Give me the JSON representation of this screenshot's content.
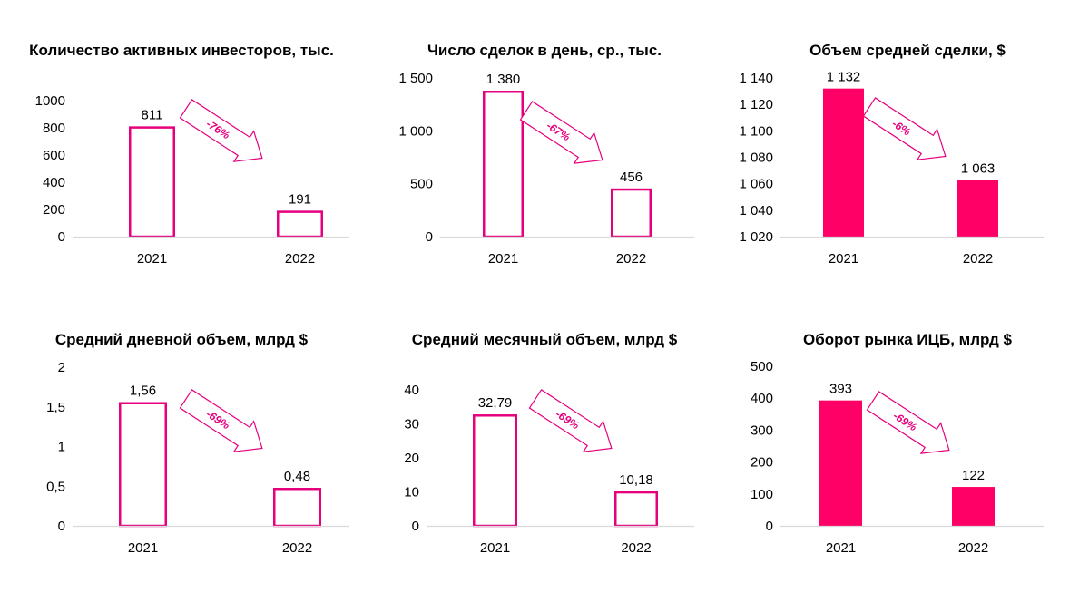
{
  "colors": {
    "accent": "#e6007e",
    "filled": "#ff0066",
    "axis": "#d9d9d9"
  },
  "chart_data": [
    {
      "type": "bar",
      "title": "Количество активных инвесторов, тыс.",
      "categories": [
        "2021",
        "2022"
      ],
      "values": [
        811,
        191
      ],
      "value_labels": [
        "811",
        "191"
      ],
      "ylim": [
        0,
        1000
      ],
      "yticks": [
        0,
        200,
        400,
        600,
        800,
        1000
      ],
      "ytick_labels": [
        "0",
        "200",
        "400",
        "600",
        "800",
        "1000"
      ],
      "bar_style": "outline",
      "change_label": "-76%"
    },
    {
      "type": "bar",
      "title": "Число сделок в день, ср., тыс.",
      "categories": [
        "2021",
        "2022"
      ],
      "values": [
        1380,
        456
      ],
      "value_labels": [
        "1 380",
        "456"
      ],
      "ylim": [
        0,
        1500
      ],
      "yticks": [
        0,
        500,
        1000,
        1500
      ],
      "ytick_labels": [
        "0",
        "500",
        "1 000",
        "1 500"
      ],
      "bar_style": "outline",
      "change_label": "-67%"
    },
    {
      "type": "bar",
      "title": "Объем средней сделки, $",
      "categories": [
        "2021",
        "2022"
      ],
      "values": [
        1132,
        1063
      ],
      "value_labels": [
        "1 132",
        "1 063"
      ],
      "ylim": [
        1020,
        1140
      ],
      "yticks": [
        1020,
        1040,
        1060,
        1080,
        1100,
        1120,
        1140
      ],
      "ytick_labels": [
        "1 020",
        "1 040",
        "1 060",
        "1 080",
        "1 100",
        "1 120",
        "1 140"
      ],
      "bar_style": "filled",
      "change_label": "-6%"
    },
    {
      "type": "bar",
      "title": "Средний дневной объем, млрд $",
      "categories": [
        "2021",
        "2022"
      ],
      "values": [
        1.56,
        0.48
      ],
      "value_labels": [
        "1,56",
        "0,48"
      ],
      "ylim": [
        0,
        2
      ],
      "yticks": [
        0,
        0.5,
        1,
        1.5,
        2
      ],
      "ytick_labels": [
        "0",
        "0,5",
        "1",
        "1,5",
        "2"
      ],
      "bar_style": "outline",
      "change_label": "-69%"
    },
    {
      "type": "bar",
      "title": "Средний месячный объем, млрд $",
      "categories": [
        "2021",
        "2022"
      ],
      "values": [
        32.79,
        10.18
      ],
      "value_labels": [
        "32,79",
        "10,18"
      ],
      "ylim": [
        0,
        40
      ],
      "yticks": [
        0,
        10,
        20,
        30,
        40
      ],
      "ytick_labels": [
        "0",
        "10",
        "20",
        "30",
        "40"
      ],
      "bar_style": "outline",
      "change_label": "-69%"
    },
    {
      "type": "bar",
      "title": "Оборот рынка ИЦБ, млрд $",
      "categories": [
        "2021",
        "2022"
      ],
      "values": [
        393,
        122
      ],
      "value_labels": [
        "393",
        "122"
      ],
      "ylim": [
        0,
        500
      ],
      "yticks": [
        0,
        100,
        200,
        300,
        400,
        500
      ],
      "ytick_labels": [
        "0",
        "100",
        "200",
        "300",
        "400",
        "500"
      ],
      "bar_style": "filled",
      "change_label": "-69%"
    }
  ]
}
